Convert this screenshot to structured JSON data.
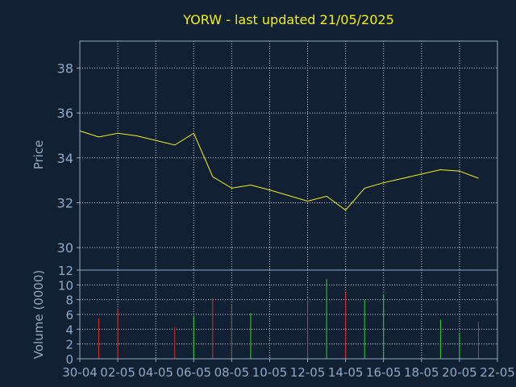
{
  "colors": {
    "background": "#112033",
    "frame": "#8fa8c4",
    "grid": "#c8d2de",
    "title": "#f2f20e",
    "price_line": "#f2f20e",
    "axis_text": "#8fa8c4",
    "volume_up": "#2fd42f",
    "volume_down": "#d42f2f"
  },
  "chart_data": [
    {
      "type": "line",
      "title": "YORW - last updated 21/05/2025",
      "ylabel": "Price",
      "ylim": [
        29,
        39.2
      ],
      "yticks": [
        30,
        32,
        34,
        36,
        38
      ],
      "ytick_labels": [
        "30",
        "32",
        "34",
        "36",
        "38"
      ],
      "grid": true,
      "x_index_range": [
        0,
        22
      ],
      "series": [
        {
          "x": [
            0,
            1,
            2,
            3,
            5,
            6,
            7,
            8,
            9,
            10,
            12,
            13,
            14,
            15,
            16,
            19,
            20,
            21
          ],
          "values": [
            35.2,
            34.93,
            35.1,
            34.98,
            34.57,
            35.1,
            33.16,
            32.65,
            32.79,
            32.57,
            32.07,
            32.29,
            31.67,
            32.65,
            32.89,
            33.47,
            33.41,
            33.09
          ]
        }
      ]
    },
    {
      "type": "bar",
      "ylabel": "Volume (0000)",
      "ylim": [
        0,
        12
      ],
      "yticks": [
        0,
        2,
        4,
        6,
        8,
        10,
        12
      ],
      "ytick_labels": [
        "0",
        "2",
        "4",
        "6",
        "8",
        "10",
        "12"
      ],
      "grid": true,
      "x_index_range": [
        0,
        22
      ],
      "xtick_positions": [
        0,
        2,
        4,
        6,
        8,
        10,
        12,
        14,
        16,
        18,
        20,
        22
      ],
      "xtick_labels": [
        "30-04",
        "02-05",
        "04-05",
        "06-05",
        "08-05",
        "10-05",
        "12-05",
        "14-05",
        "16-05",
        "18-05",
        "20-05",
        "22-05"
      ],
      "series": [
        {
          "x": [
            1,
            2,
            5,
            6,
            7,
            8,
            9,
            12,
            13,
            14,
            15,
            16,
            19,
            20,
            21
          ],
          "values": [
            5.5,
            6.7,
            4.3,
            5.8,
            8.2,
            7.4,
            6.2,
            8.3,
            10.8,
            9.0,
            8.0,
            8.7,
            5.3,
            3.5,
            5.0
          ],
          "direction": [
            "down",
            "down",
            "down",
            "up",
            "down",
            "down",
            "up",
            "down",
            "up",
            "down",
            "up",
            "up",
            "up",
            "up",
            "down"
          ]
        }
      ]
    }
  ]
}
